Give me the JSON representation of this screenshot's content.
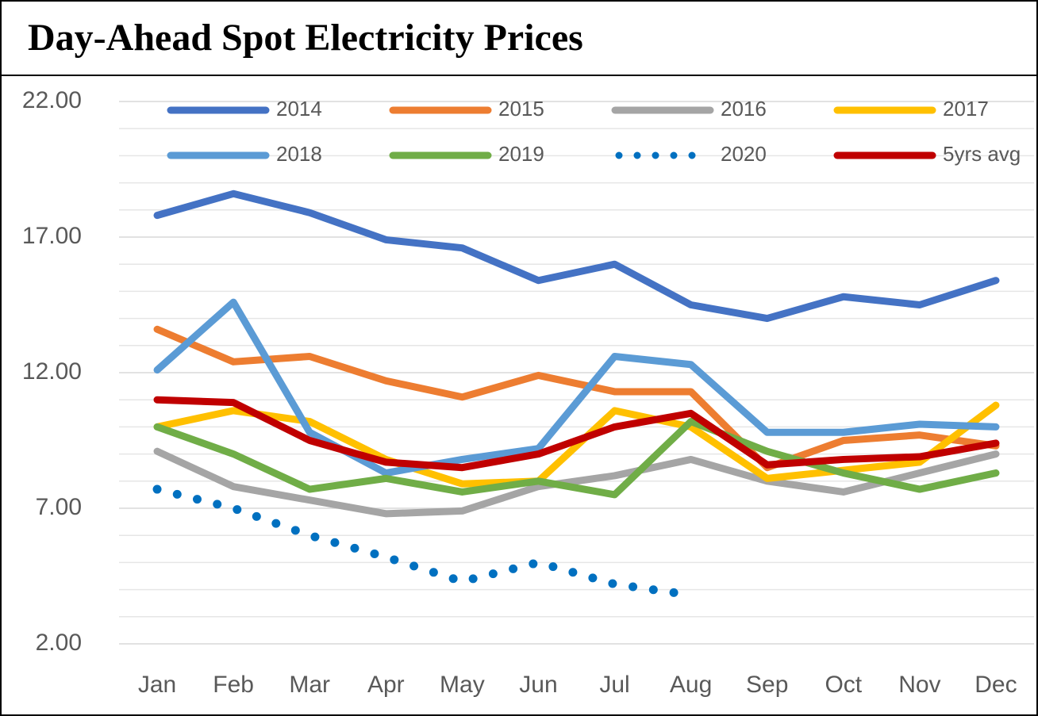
{
  "chart_data": {
    "type": "line",
    "title": "Day-Ahead Spot Electricity Prices",
    "categories": [
      "Jan",
      "Feb",
      "Mar",
      "Apr",
      "May",
      "Jun",
      "Jul",
      "Aug",
      "Sep",
      "Oct",
      "Nov",
      "Dec"
    ],
    "series": [
      {
        "name": "2014",
        "color": "#4472c4",
        "values": [
          17.8,
          18.6,
          17.9,
          16.9,
          16.6,
          15.4,
          16.0,
          14.5,
          14.0,
          14.8,
          14.5,
          15.4
        ]
      },
      {
        "name": "2015",
        "color": "#ed7d31",
        "values": [
          13.6,
          12.4,
          12.6,
          11.7,
          11.1,
          11.9,
          11.3,
          11.3,
          8.5,
          9.5,
          9.7,
          9.3
        ]
      },
      {
        "name": "2016",
        "color": "#a5a5a5",
        "values": [
          9.1,
          7.8,
          7.3,
          6.8,
          6.9,
          7.8,
          8.2,
          8.8,
          8.0,
          7.6,
          8.3,
          9.0
        ]
      },
      {
        "name": "2017",
        "color": "#ffc000",
        "values": [
          10.0,
          10.6,
          10.2,
          8.8,
          7.9,
          8.0,
          10.6,
          10.0,
          8.1,
          8.4,
          8.7,
          10.8
        ]
      },
      {
        "name": "2018",
        "color": "#5b9bd5",
        "values": [
          12.1,
          14.6,
          9.8,
          8.3,
          8.8,
          9.2,
          12.6,
          12.3,
          9.8,
          9.8,
          10.1,
          10.0
        ]
      },
      {
        "name": "2019",
        "color": "#70ad47",
        "values": [
          10.0,
          9.0,
          7.7,
          8.1,
          7.6,
          8.0,
          7.5,
          10.2,
          9.1,
          8.3,
          7.7,
          8.3
        ]
      },
      {
        "name": "2020",
        "color": "#0070c0",
        "style": "dotted",
        "values": [
          7.7,
          7.0,
          6.0,
          5.2,
          4.3,
          5.0,
          4.2,
          3.8,
          null,
          null,
          null,
          null
        ]
      },
      {
        "name": "5yrs avg",
        "color": "#c00000",
        "values": [
          11.0,
          10.9,
          9.5,
          8.7,
          8.5,
          9.0,
          10.0,
          10.5,
          8.6,
          8.8,
          8.9,
          9.4
        ]
      }
    ],
    "ylim": [
      2,
      22
    ],
    "yticks": [
      {
        "value": 2,
        "label": "2.00"
      },
      {
        "value": 7,
        "label": "7.00"
      },
      {
        "value": 12,
        "label": "12.00"
      },
      {
        "value": 17,
        "label": "17.00"
      },
      {
        "value": 22,
        "label": "22.00"
      }
    ],
    "y_minor_ticks": [
      3,
      4,
      5,
      6,
      8,
      9,
      10,
      11,
      13,
      14,
      15,
      16,
      18,
      19,
      20,
      21
    ],
    "grid": true,
    "legend": "top"
  }
}
